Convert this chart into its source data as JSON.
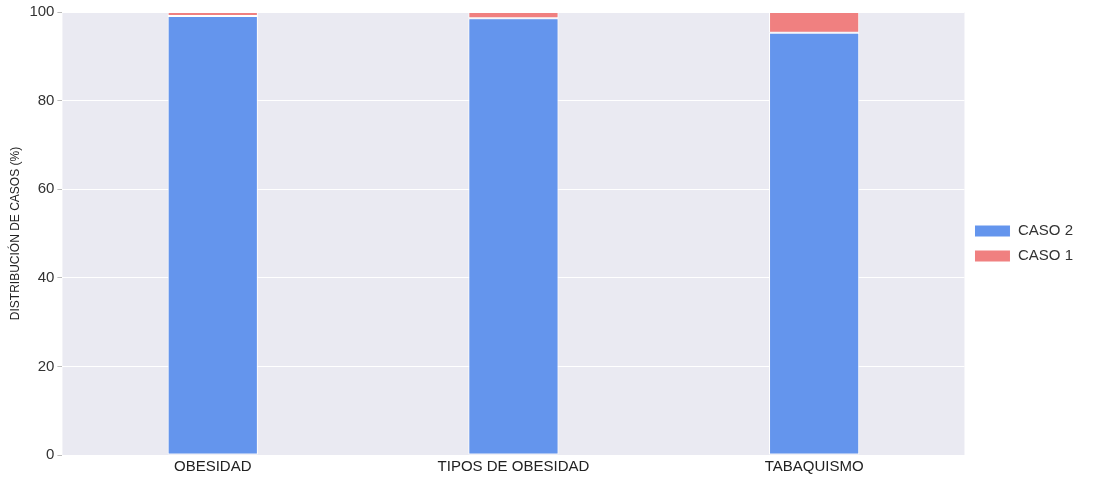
{
  "chart_data": {
    "type": "bar",
    "stacked": true,
    "ylabel": "DISTRIBUCIÓN DE CASOS (%)",
    "categories": [
      "OBESIDAD",
      "TIPOS DE OBESIDAD",
      "TABAQUISMO"
    ],
    "series": [
      {
        "name": "CASO 2",
        "color": "#6495ed",
        "values": [
          99.1,
          98.6,
          95.3
        ]
      },
      {
        "name": "CASO 1",
        "color": "#f08080",
        "values": [
          0.9,
          1.4,
          4.7
        ]
      }
    ],
    "ylim": [
      0,
      100
    ],
    "yticks": [
      0,
      20,
      40,
      60,
      80,
      100
    ],
    "grid": "y",
    "legend": "right"
  }
}
